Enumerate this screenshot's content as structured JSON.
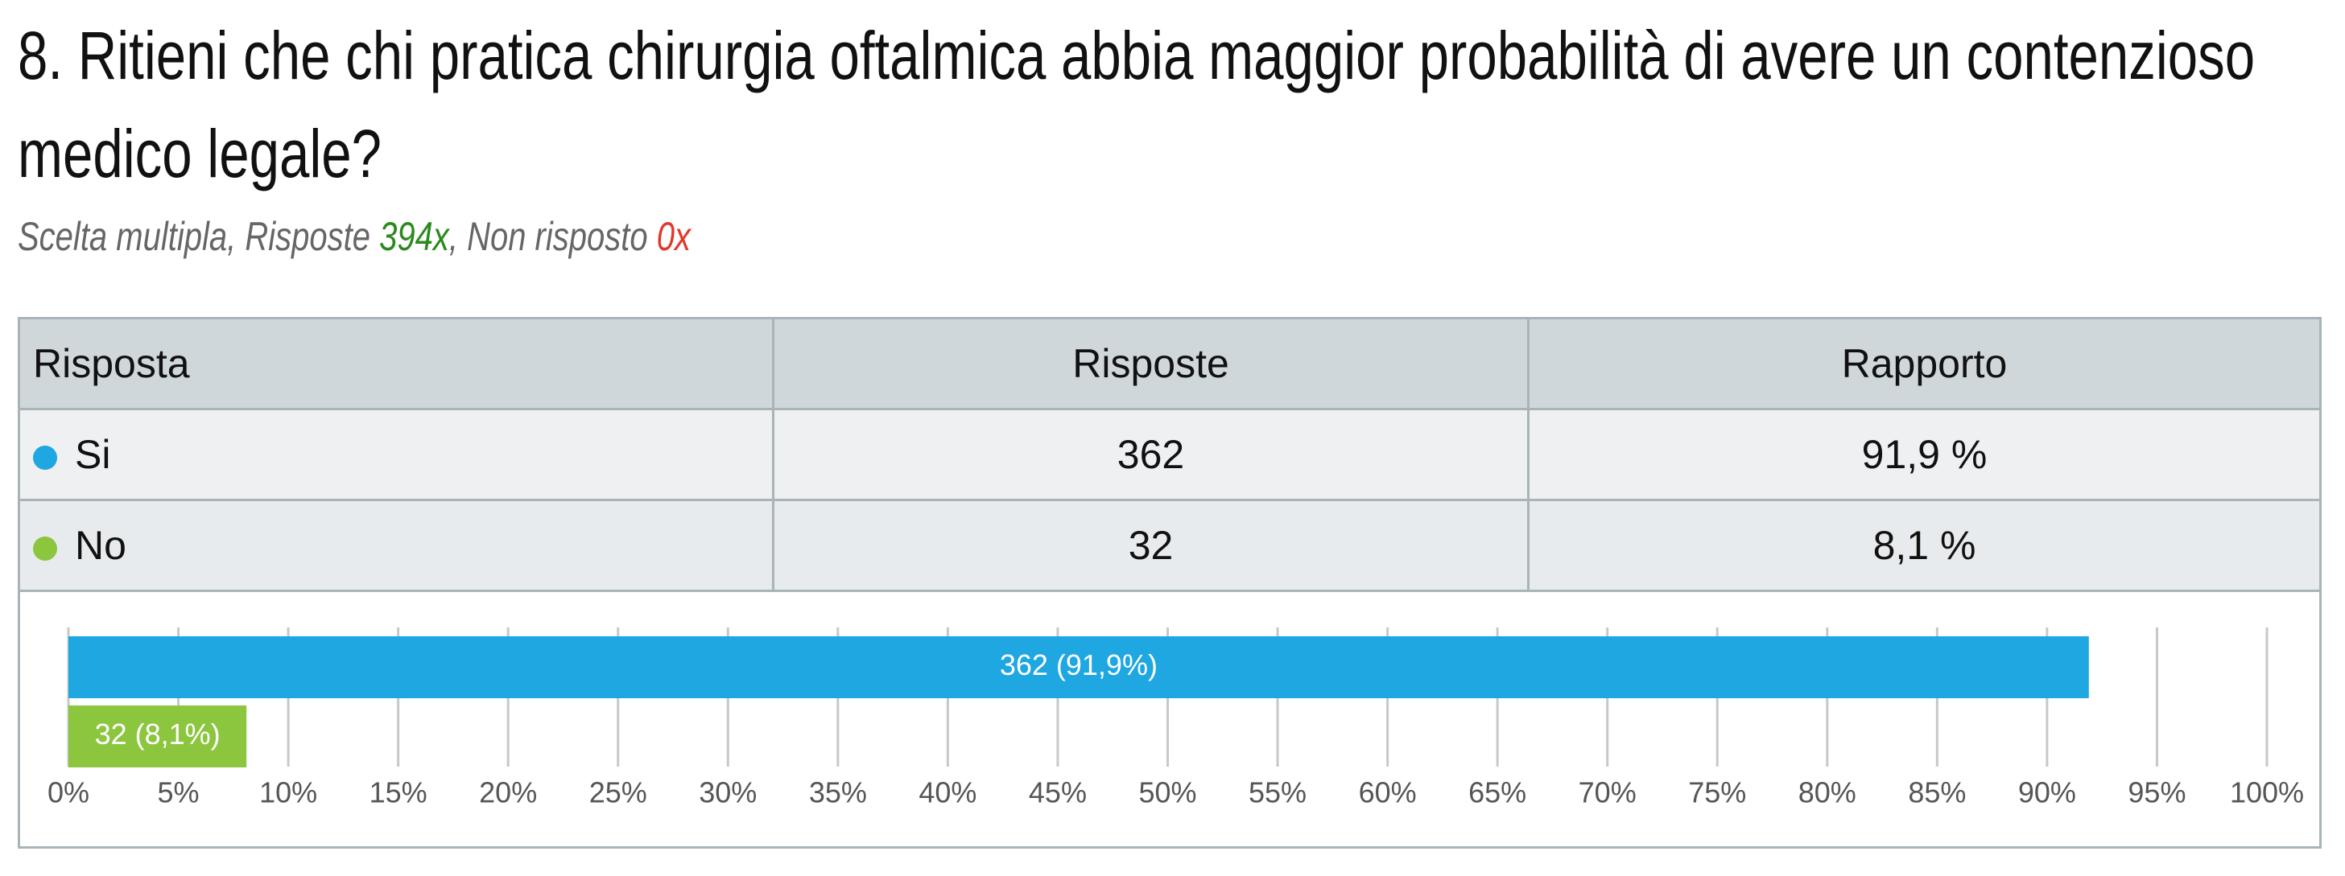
{
  "header": {
    "title": "8. Ritieni che chi pratica chirurgia oftalmica abbia maggior probabilità di avere un contenzioso medico legale?",
    "subtitle": [
      "Scelta multipla, Risposte ",
      "394x",
      ", Non risposto ",
      "0x"
    ]
  },
  "table": {
    "columns": [
      "Risposta",
      "Risposte",
      "Rapporto"
    ],
    "rows": [
      [
        "Si",
        362,
        "91,9 %"
      ],
      [
        "No",
        32,
        "8,1 %"
      ]
    ]
  },
  "chart_data": {
    "type": "bar",
    "orientation": "horizontal",
    "categories": [
      "Si",
      "No"
    ],
    "values": [
      91.9,
      8.1
    ],
    "value_labels": [
      "362 (91,9%)",
      "32 (8,1%)"
    ],
    "colors": [
      "#1ea7e1",
      "#8cc63f"
    ],
    "xlim": [
      0,
      100
    ],
    "grid": true,
    "xticks": [
      {
        "value": 0,
        "label": "0%"
      },
      {
        "value": 5,
        "label": "5%"
      },
      {
        "value": 10,
        "label": "10%"
      },
      {
        "value": 15,
        "label": "15%"
      },
      {
        "value": 20,
        "label": "20%"
      },
      {
        "value": 25,
        "label": "25%"
      },
      {
        "value": 30,
        "label": "30%"
      },
      {
        "value": 35,
        "label": "35%"
      },
      {
        "value": 40,
        "label": "40%"
      },
      {
        "value": 45,
        "label": "45%"
      },
      {
        "value": 50,
        "label": "50%"
      },
      {
        "value": 55,
        "label": "55%"
      },
      {
        "value": 60,
        "label": "60%"
      },
      {
        "value": 65,
        "label": "65%"
      },
      {
        "value": 70,
        "label": "70%"
      },
      {
        "value": 75,
        "label": "75%"
      },
      {
        "value": 80,
        "label": "80%"
      },
      {
        "value": 85,
        "label": "85%"
      },
      {
        "value": 90,
        "label": "90%"
      },
      {
        "value": 95,
        "label": "95%"
      },
      {
        "value": 100,
        "label": "100%"
      }
    ]
  }
}
